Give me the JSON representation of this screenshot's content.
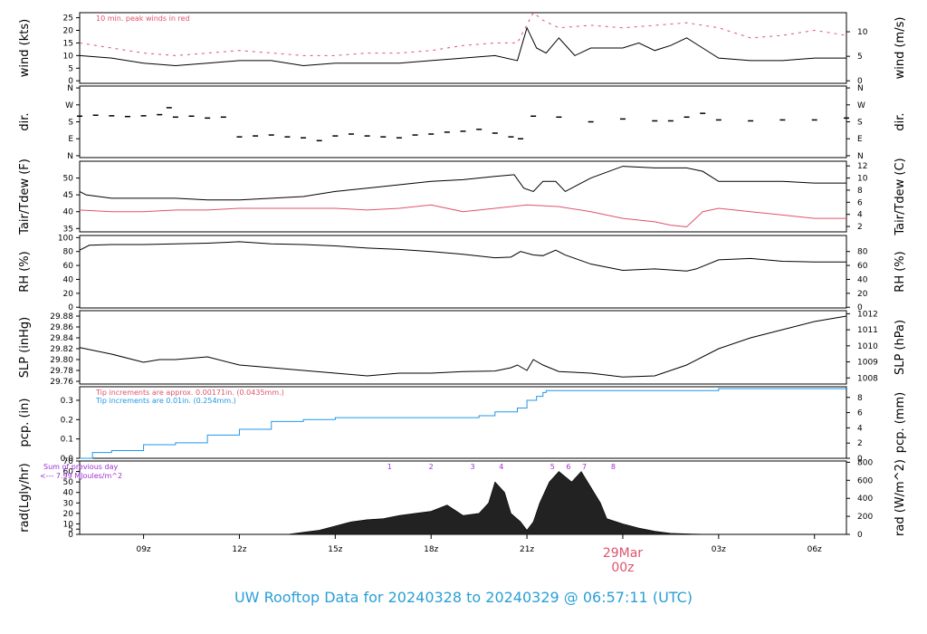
{
  "title": "UW Rooftop Data for 20240328  to  20240329 @ 06:57:11  (UTC)",
  "colors": {
    "line": "#000000",
    "red": "#df536b",
    "blue": "#2297e6",
    "purple": "#9d2fd6",
    "title": "#2a9fd6"
  },
  "x_axis": {
    "ticks": [
      {
        "label": "09z",
        "hour": 9
      },
      {
        "label": "12z",
        "hour": 12
      },
      {
        "label": "15z",
        "hour": 15
      },
      {
        "label": "18z",
        "hour": 18
      },
      {
        "label": "21z",
        "hour": 21
      },
      {
        "label": "03z",
        "hour": 27
      },
      {
        "label": "06z",
        "hour": 30
      }
    ],
    "date_marker": {
      "label": "29Mar",
      "sublabel": "00z",
      "hour": 24
    }
  },
  "chart_data": [
    {
      "type": "line",
      "id": "wind",
      "ylabel_left": "wind (kts)",
      "ylabel_right": "wind (m/s)",
      "yticks_left": [
        0,
        5,
        10,
        15,
        20,
        25
      ],
      "yticks_right": [
        0,
        5,
        10
      ],
      "annotation": "10 min. peak winds in red",
      "ylim": [
        -1,
        27
      ],
      "series": [
        {
          "color": "red",
          "style": "dash",
          "x": [
            7,
            8,
            9,
            10,
            11,
            12,
            13,
            14,
            15,
            16,
            17,
            18,
            19,
            20,
            20.7,
            21.2,
            21.5,
            22,
            23,
            24,
            25,
            26,
            27,
            28,
            29,
            30,
            31
          ],
          "y": [
            15,
            13,
            11,
            10,
            11,
            12,
            11,
            10,
            10,
            11,
            11,
            12,
            14,
            15,
            15,
            27,
            24,
            21,
            22,
            21,
            22,
            23,
            21,
            17,
            18,
            20,
            18
          ]
        },
        {
          "color": "line",
          "x": [
            7,
            8,
            9,
            10,
            11,
            12,
            13,
            14,
            15,
            16,
            17,
            18,
            19,
            20,
            20.7,
            21.0,
            21.3,
            21.6,
            22,
            22.5,
            23,
            24,
            24.5,
            25,
            25.5,
            26,
            26.5,
            27,
            28,
            29,
            30,
            31
          ],
          "y": [
            10,
            9,
            7,
            6,
            7,
            8,
            8,
            6,
            7,
            7,
            7,
            8,
            9,
            10,
            8,
            21,
            13,
            11,
            17,
            10,
            13,
            13,
            15,
            12,
            14,
            17,
            13,
            9,
            8,
            8,
            9,
            9
          ]
        }
      ]
    },
    {
      "type": "scatter",
      "id": "dir",
      "ylabel_left": "dir.",
      "ylabel_right": "dir.",
      "ytick_labels": [
        "N",
        "E",
        "S",
        "W",
        "N"
      ],
      "yticks": [
        0,
        90,
        180,
        270,
        360
      ],
      "ylim": [
        -10,
        370
      ],
      "x": [
        7,
        7.5,
        8,
        8.5,
        9,
        9.5,
        9.8,
        10,
        10.5,
        11,
        11.5,
        12,
        12.5,
        13,
        13.5,
        14,
        14.5,
        15,
        15.5,
        16,
        16.5,
        17,
        17.5,
        18,
        18.5,
        19,
        19.5,
        20,
        20.5,
        20.8,
        21.2,
        22,
        23,
        24,
        25,
        25.5,
        26,
        26.5,
        27,
        28,
        29,
        30,
        31
      ],
      "y": [
        210,
        215,
        212,
        208,
        212,
        218,
        255,
        205,
        210,
        200,
        205,
        100,
        105,
        110,
        100,
        95,
        80,
        105,
        115,
        105,
        100,
        95,
        110,
        115,
        125,
        130,
        140,
        120,
        100,
        90,
        210,
        205,
        180,
        195,
        185,
        185,
        205,
        225,
        190,
        185,
        190,
        190,
        200
      ]
    },
    {
      "type": "line",
      "id": "temp",
      "ylabel_left": "Tair/Tdew (F)",
      "ylabel_right": "Tair/Tdew (C)",
      "yticks_left": [
        35,
        40,
        45,
        50
      ],
      "yticks_right": [
        2,
        4,
        6,
        8,
        10,
        12
      ],
      "ylim": [
        34,
        55
      ],
      "series": [
        {
          "color": "line",
          "x": [
            7,
            7.2,
            8,
            9,
            10,
            11,
            12,
            13,
            14,
            15,
            16,
            17,
            18,
            19,
            20,
            20.6,
            20.9,
            21.2,
            21.5,
            21.9,
            22.2,
            23,
            24,
            25,
            26,
            26.5,
            27,
            28,
            29,
            30,
            31
          ],
          "y": [
            46,
            45,
            44,
            44,
            44,
            43.5,
            43.5,
            44,
            44.5,
            46,
            47,
            48,
            49,
            49.5,
            50.5,
            51,
            47,
            46,
            49,
            49,
            46,
            50,
            53.5,
            53,
            53,
            52,
            49,
            49,
            49,
            48.5,
            48.5
          ]
        },
        {
          "color": "red",
          "x": [
            7,
            8,
            9,
            10,
            11,
            12,
            13,
            14,
            15,
            16,
            17,
            18,
            19,
            20,
            21,
            22,
            23,
            24,
            25,
            25.5,
            26,
            26.5,
            27,
            28,
            29,
            30,
            31
          ],
          "y": [
            40.5,
            40,
            40,
            40.5,
            40.5,
            41,
            41,
            41,
            41,
            40.5,
            41,
            42,
            40,
            41,
            42,
            41.5,
            40,
            38,
            37,
            36,
            35.5,
            40,
            41,
            40,
            39,
            38,
            38
          ]
        }
      ]
    },
    {
      "type": "line",
      "id": "rh",
      "ylabel_left": "RH (%)",
      "ylabel_right": "RH (%)",
      "yticks_left": [
        0,
        20,
        40,
        60,
        80,
        100
      ],
      "yticks_right": [
        0,
        20,
        40,
        60,
        80
      ],
      "ylim": [
        -1,
        103
      ],
      "series": [
        {
          "color": "line",
          "x": [
            7,
            7.3,
            8,
            9,
            10,
            11,
            12,
            13,
            14,
            15,
            16,
            17,
            18,
            19,
            20,
            20.5,
            20.8,
            21.2,
            21.5,
            21.9,
            22.2,
            23,
            24,
            25,
            26,
            26.3,
            27,
            28,
            29,
            30,
            31
          ],
          "y": [
            82,
            89,
            90,
            90,
            91,
            92,
            94,
            91,
            90,
            88,
            85,
            83,
            80,
            76,
            71,
            72,
            80,
            75,
            74,
            82,
            75,
            62,
            53,
            55,
            52,
            55,
            68,
            70,
            66,
            65,
            65
          ]
        }
      ]
    },
    {
      "type": "line",
      "id": "slp",
      "ylabel_left": "SLP (inHg)",
      "ylabel_right": "SLP (hPa)",
      "yticks_left": [
        29.76,
        29.78,
        29.8,
        29.82,
        29.84,
        29.86,
        29.88
      ],
      "yticks_right": [
        1008,
        1009,
        1010,
        1011,
        1012
      ],
      "ylim": [
        29.755,
        29.89
      ],
      "series": [
        {
          "color": "line",
          "x": [
            7,
            8,
            9,
            9.5,
            10,
            11,
            12,
            13,
            14,
            15,
            16,
            17,
            18,
            19,
            20,
            20.5,
            20.7,
            21,
            21.2,
            21.5,
            22,
            23,
            24,
            25,
            26,
            27,
            28,
            29,
            30,
            31
          ],
          "y": [
            29.822,
            29.81,
            29.795,
            29.8,
            29.8,
            29.805,
            29.79,
            29.785,
            29.78,
            29.775,
            29.77,
            29.775,
            29.775,
            29.778,
            29.779,
            29.785,
            29.79,
            29.78,
            29.8,
            29.79,
            29.778,
            29.775,
            29.768,
            29.77,
            29.79,
            29.82,
            29.84,
            29.855,
            29.87,
            29.88
          ]
        }
      ]
    },
    {
      "type": "area",
      "id": "pcp",
      "ylabel_left": "pcp. (in)",
      "ylabel_right": "pcp. (mm)",
      "yticks_left": [
        0.0,
        0.1,
        0.2,
        0.3
      ],
      "yticks_right": [
        0,
        2,
        4,
        6,
        8
      ],
      "ylim": [
        0,
        0.37
      ],
      "annotation_red": "Tip increments are approx. 0.00171in. (0.0435mm.)",
      "annotation_blue": "Tip increments are 0.01in. (0.254mm.)",
      "series": [
        {
          "color": "blue",
          "x": [
            7,
            7.4,
            8,
            9,
            10,
            11,
            12,
            13,
            14,
            15,
            16,
            17,
            18,
            19,
            19.5,
            20,
            20.5,
            20.7,
            21,
            21.3,
            21.5,
            21.6,
            22,
            23,
            24,
            25,
            26,
            27,
            28,
            29,
            30,
            31
          ],
          "y": [
            0.0,
            0.03,
            0.04,
            0.07,
            0.08,
            0.12,
            0.15,
            0.19,
            0.2,
            0.21,
            0.21,
            0.21,
            0.21,
            0.21,
            0.22,
            0.24,
            0.24,
            0.26,
            0.3,
            0.32,
            0.34,
            0.35,
            0.35,
            0.35,
            0.35,
            0.35,
            0.35,
            0.36,
            0.36,
            0.36,
            0.36,
            0.36
          ]
        }
      ]
    },
    {
      "type": "area",
      "id": "rad",
      "ylabel_left": "rad(Lgly/hr)",
      "ylabel_right": "rad (W/m^2)",
      "yticks_left": [
        0,
        5,
        10,
        20,
        30,
        40,
        50,
        60,
        70
      ],
      "ytick_label_values": [
        0,
        10,
        20,
        30,
        40,
        50,
        60,
        70
      ],
      "yticks_right": [
        0,
        200,
        400,
        600,
        800
      ],
      "ylim": [
        0,
        70
      ],
      "annotation_1": "Sum of previous day",
      "annotation_2": "<--- 7.99 MJoules/m^2",
      "markers": [
        {
          "label": "1",
          "hour": 16.7
        },
        {
          "label": "2",
          "hour": 18
        },
        {
          "label": "3",
          "hour": 19.3
        },
        {
          "label": "4",
          "hour": 20.2
        },
        {
          "label": "5",
          "hour": 21.8
        },
        {
          "label": "6",
          "hour": 22.3
        },
        {
          "label": "7",
          "hour": 22.8
        },
        {
          "label": "8",
          "hour": 23.7
        }
      ],
      "series": [
        {
          "color": "line",
          "x": [
            13.5,
            14,
            14.5,
            15,
            15.5,
            16,
            16.5,
            17,
            17.5,
            18,
            18.5,
            19,
            19.5,
            19.8,
            20,
            20.3,
            20.5,
            20.8,
            21,
            21.2,
            21.4,
            21.7,
            22,
            22.2,
            22.4,
            22.7,
            23,
            23.3,
            23.5,
            24,
            24.5,
            25,
            25.5,
            26,
            26.5,
            27
          ],
          "y": [
            0,
            2,
            4,
            8,
            12,
            14,
            15,
            18,
            20,
            22,
            28,
            18,
            20,
            30,
            50,
            40,
            20,
            12,
            4,
            12,
            30,
            50,
            60,
            55,
            50,
            60,
            45,
            30,
            15,
            10,
            6,
            3,
            1,
            0.5,
            0.2,
            0
          ]
        }
      ]
    }
  ]
}
